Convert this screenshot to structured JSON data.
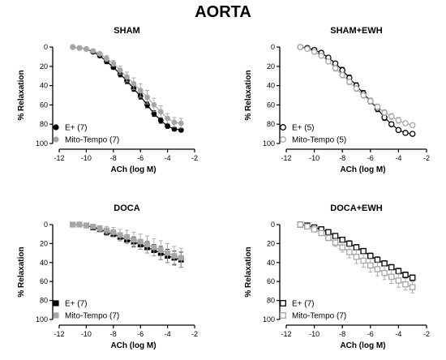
{
  "figure": {
    "title": "AORTA"
  },
  "chart_data": [
    {
      "type": "scatter",
      "title": "SHAM",
      "xlabel": "ACh (log M)",
      "ylabel": "% Relaxation",
      "xlim": [
        -12,
        -2
      ],
      "ylim": [
        0,
        100
      ],
      "y_inverted": true,
      "xticks": [
        -12,
        -10,
        -8,
        -6,
        -4,
        -2
      ],
      "yticks": [
        0,
        20,
        40,
        60,
        80,
        100
      ],
      "legend_position": "bottom-left",
      "marker": "circle",
      "series": [
        {
          "name": "E+ (7)",
          "color": "#000000",
          "fill": "#000000",
          "x": [
            -11,
            -10.5,
            -10,
            -9.5,
            -9,
            -8.5,
            -8,
            -7.5,
            -7,
            -6.5,
            -6,
            -5.5,
            -5,
            -4.5,
            -4,
            -3.5,
            -3
          ],
          "y": [
            0,
            1,
            2,
            5,
            9,
            15,
            21,
            28,
            35,
            43,
            51,
            60,
            69,
            76,
            82,
            85,
            86
          ],
          "err": [
            0,
            1,
            1,
            1,
            2,
            2,
            2,
            3,
            3,
            3,
            3,
            3,
            3,
            3,
            2,
            2,
            2
          ]
        },
        {
          "name": "Mito-Tempo (7)",
          "color": "#a6a6a6",
          "fill": "#a6a6a6",
          "x": [
            -11,
            -10.5,
            -10,
            -9.5,
            -9,
            -8.5,
            -8,
            -7.5,
            -7,
            -6.5,
            -6,
            -5.5,
            -5,
            -4.5,
            -4,
            -3.5,
            -3
          ],
          "y": [
            0,
            1,
            2,
            4,
            7,
            12,
            17,
            24,
            31,
            38,
            45,
            52,
            60,
            67,
            74,
            78,
            79
          ],
          "err": [
            0,
            1,
            1,
            2,
            2,
            3,
            3,
            4,
            5,
            6,
            7,
            7,
            7,
            6,
            5,
            5,
            5
          ]
        }
      ]
    },
    {
      "type": "scatter",
      "title": "SHAM+EWH",
      "xlabel": "ACh (log M)",
      "ylabel": "% Relaxation",
      "xlim": [
        -12,
        -2
      ],
      "ylim": [
        0,
        100
      ],
      "y_inverted": true,
      "xticks": [
        -12,
        -10,
        -8,
        -6,
        -4,
        -2
      ],
      "yticks": [
        0,
        20,
        40,
        60,
        80,
        100
      ],
      "legend_position": "bottom-left",
      "marker": "circle-open",
      "series": [
        {
          "name": "E+ (5)",
          "color": "#000000",
          "fill": "none",
          "x": [
            -11,
            -10.5,
            -10,
            -9.5,
            -9,
            -8.5,
            -8,
            -7.5,
            -7,
            -6.5,
            -6,
            -5.5,
            -5,
            -4.5,
            -4,
            -3.5,
            -3
          ],
          "y": [
            0,
            1,
            3,
            6,
            11,
            17,
            24,
            32,
            40,
            48,
            56,
            64,
            73,
            80,
            86,
            89,
            90
          ],
          "err": [
            0,
            1,
            1,
            2,
            2,
            2,
            3,
            3,
            3,
            3,
            3,
            3,
            3,
            2,
            2,
            2,
            2
          ]
        },
        {
          "name": "Mito-Tempo (5)",
          "color": "#a6a6a6",
          "fill": "none",
          "x": [
            -11,
            -10.5,
            -10,
            -9.5,
            -9,
            -8.5,
            -8,
            -7.5,
            -7,
            -6.5,
            -6,
            -5.5,
            -5,
            -4.5,
            -4,
            -3.5,
            -3
          ],
          "y": [
            0,
            2,
            5,
            9,
            15,
            22,
            29,
            36,
            43,
            50,
            56,
            62,
            68,
            72,
            76,
            79,
            81
          ],
          "err": [
            0,
            1,
            1,
            2,
            2,
            3,
            3,
            3,
            3,
            3,
            3,
            3,
            3,
            3,
            3,
            2,
            2
          ]
        }
      ]
    },
    {
      "type": "scatter",
      "title": "DOCA",
      "xlabel": "ACh (log M)",
      "ylabel": "% Relaxation",
      "xlim": [
        -12,
        -2
      ],
      "ylim": [
        0,
        100
      ],
      "y_inverted": true,
      "xticks": [
        -12,
        -10,
        -8,
        -6,
        -4,
        -2
      ],
      "yticks": [
        0,
        20,
        40,
        60,
        80,
        100
      ],
      "legend_position": "bottom-left",
      "marker": "square",
      "series": [
        {
          "name": "E+ (7)",
          "color": "#000000",
          "fill": "#000000",
          "x": [
            -11,
            -10.5,
            -10,
            -9.5,
            -9,
            -8.5,
            -8,
            -7.5,
            -7,
            -6.5,
            -6,
            -5.5,
            -5,
            -4.5,
            -4,
            -3.5,
            -3
          ],
          "y": [
            0,
            0,
            1,
            3,
            5,
            8,
            10,
            13,
            16,
            18,
            21,
            24,
            27,
            30,
            33,
            35,
            37
          ],
          "err": [
            0,
            1,
            1,
            1,
            2,
            3,
            3,
            4,
            4,
            5,
            5,
            6,
            6,
            7,
            7,
            7,
            8
          ]
        },
        {
          "name": "Mito-Tempo (7)",
          "color": "#a6a6a6",
          "fill": "#a6a6a6",
          "x": [
            -11,
            -10.5,
            -10,
            -9.5,
            -9,
            -8.5,
            -8,
            -7.5,
            -7,
            -6.5,
            -6,
            -5.5,
            -5,
            -4.5,
            -4,
            -3.5,
            -3
          ],
          "y": [
            0,
            0,
            1,
            2,
            4,
            6,
            8,
            11,
            13,
            16,
            18,
            21,
            24,
            27,
            30,
            33,
            35
          ],
          "err": [
            0,
            1,
            1,
            2,
            3,
            4,
            5,
            6,
            7,
            8,
            8,
            9,
            9,
            10,
            10,
            10,
            10
          ]
        }
      ]
    },
    {
      "type": "scatter",
      "title": "DOCA+EWH",
      "xlabel": "ACh (log M)",
      "ylabel": "% Relaxation",
      "xlim": [
        -12,
        -2
      ],
      "ylim": [
        0,
        100
      ],
      "y_inverted": true,
      "xticks": [
        -12,
        -10,
        -8,
        -6,
        -4,
        -2
      ],
      "yticks": [
        0,
        20,
        40,
        60,
        80,
        100
      ],
      "legend_position": "bottom-left",
      "marker": "square-open",
      "series": [
        {
          "name": "E+ (7)",
          "color": "#000000",
          "fill": "none",
          "x": [
            -11,
            -10.5,
            -10,
            -9.5,
            -9,
            -8.5,
            -8,
            -7.5,
            -7,
            -6.5,
            -6,
            -5.5,
            -5,
            -4.5,
            -4,
            -3.5,
            -3
          ],
          "y": [
            0,
            1,
            3,
            5,
            8,
            12,
            16,
            20,
            24,
            28,
            33,
            37,
            41,
            45,
            49,
            53,
            56
          ],
          "err": [
            0,
            1,
            1,
            1,
            2,
            2,
            2,
            3,
            3,
            3,
            3,
            3,
            3,
            3,
            3,
            3,
            3
          ]
        },
        {
          "name": "Mito-Tempo (7)",
          "color": "#a6a6a6",
          "fill": "none",
          "x": [
            -11,
            -10.5,
            -10,
            -9.5,
            -9,
            -8.5,
            -8,
            -7.5,
            -7,
            -6.5,
            -6,
            -5.5,
            -5,
            -4.5,
            -4,
            -3.5,
            -3
          ],
          "y": [
            0,
            2,
            5,
            9,
            14,
            19,
            24,
            29,
            34,
            38,
            43,
            47,
            51,
            55,
            59,
            63,
            66
          ],
          "err": [
            0,
            1,
            2,
            2,
            3,
            4,
            5,
            6,
            7,
            7,
            7,
            7,
            7,
            7,
            7,
            6,
            6
          ]
        }
      ]
    }
  ]
}
